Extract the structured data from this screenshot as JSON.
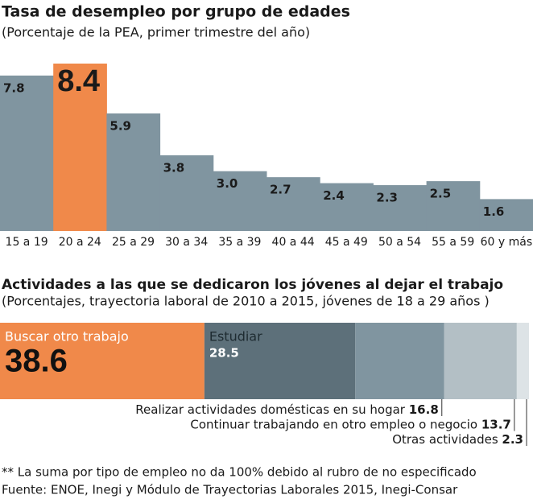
{
  "chart_data": [
    {
      "type": "bar",
      "title": "Tasa de desempleo por grupo de edades",
      "subtitle": "(Porcentaje de la PEA, primer trimestre del año)",
      "categories": [
        "15 a 19",
        "20 a 24",
        "25 a 29",
        "30 a 34",
        "35 a 39",
        "40 a 44",
        "45 a 49",
        "50 a 54",
        "55 a 59",
        "60 y más"
      ],
      "values": [
        7.8,
        8.4,
        5.9,
        3.8,
        3.0,
        2.7,
        2.4,
        2.3,
        2.5,
        1.6
      ],
      "value_labels": [
        "7.8",
        "8.4",
        "5.9",
        "3.8",
        "3.0",
        "2.7",
        "2.4",
        "2.3",
        "2.5",
        "1.6"
      ],
      "colors": [
        "#8095a0",
        "#f0894a",
        "#8095a0",
        "#8095a0",
        "#8095a0",
        "#8095a0",
        "#8095a0",
        "#8095a0",
        "#8095a0",
        "#8095a0"
      ]
    },
    {
      "type": "stacked-bar",
      "title": "Actividades a las que se dedicaron los jóvenes al dejar el trabajo",
      "subtitle": "(Porcentajes, trayectoria laboral de 2010 a 2015, jóvenes de 18 a 29 años )",
      "series": [
        {
          "name": "Buscar otro trabajo",
          "color": "#f0894a",
          "values": [
            38.6
          ]
        },
        {
          "name": "Estudiar",
          "color": "#5d707a",
          "values": [
            28.5
          ]
        },
        {
          "name": "Realizar actividades domésticas en su hogar",
          "color": "#8095a0",
          "values": [
            16.8
          ]
        },
        {
          "name": "Continuar trabajando en otro empleo o negocio",
          "color": "#b3bfc5",
          "values": [
            13.7
          ]
        },
        {
          "name": "Otras actividades",
          "color": "#dde3e6",
          "values": [
            2.3
          ]
        }
      ],
      "note": "** La suma por tipo de empleo no da 100% debido al rubro de no especificado",
      "source": "Fuente: ENOE, Inegi y Módulo de Trayectorias Laborales 2015, Inegi-Consar"
    }
  ]
}
